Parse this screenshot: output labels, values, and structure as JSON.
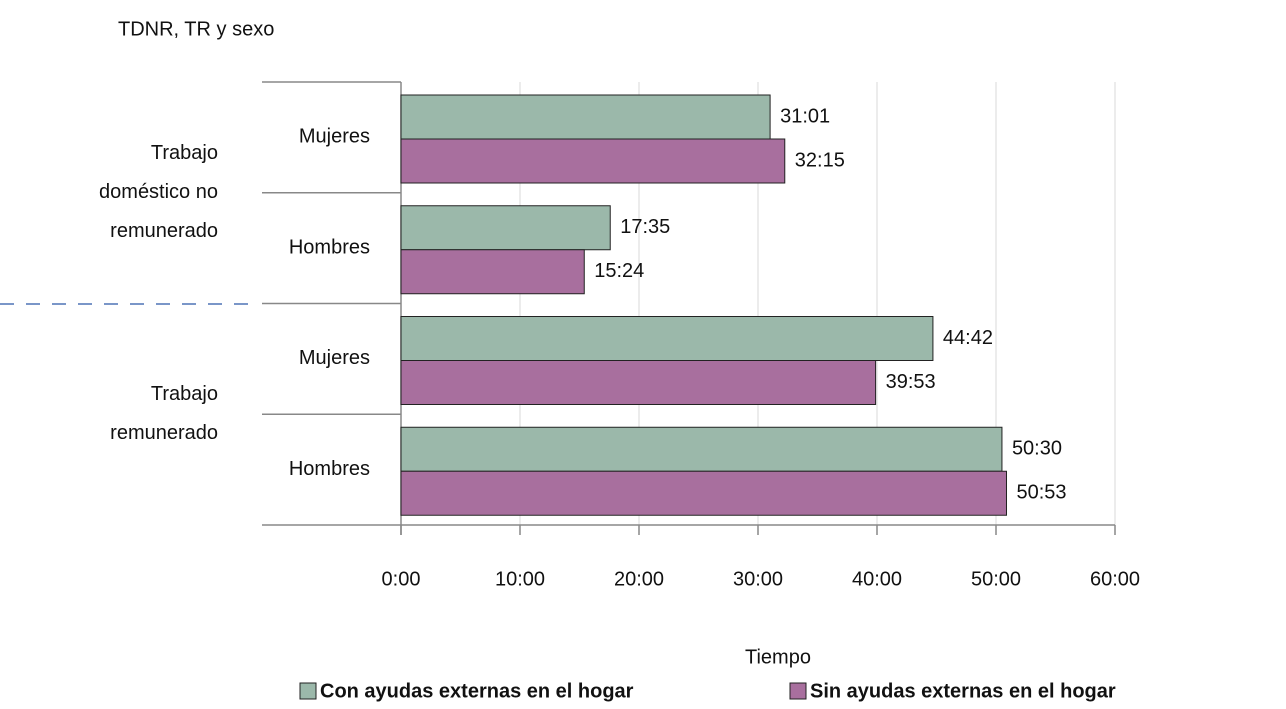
{
  "chart_data": {
    "type": "bar",
    "orientation": "horizontal",
    "title": "TDNR, TR y sexo",
    "x_label": "Tiempo",
    "groups": [
      [
        "Trabajo",
        "doméstico no",
        "remunerado"
      ],
      [
        "Trabajo",
        "remunerado"
      ]
    ],
    "categories": [
      "Mujeres",
      "Hombres",
      "Mujeres",
      "Hombres"
    ],
    "series": [
      {
        "name": "Con ayudas externas en el hogar",
        "color": "#9bb8aa",
        "values": [
          31.017,
          17.583,
          44.7,
          50.5
        ],
        "value_labels": [
          "31:01",
          "17:35",
          "44:42",
          "50:30"
        ]
      },
      {
        "name": "Sin ayudas externas en el hogar",
        "color": "#a86f9e",
        "values": [
          32.25,
          15.4,
          39.883,
          50.883
        ],
        "value_labels": [
          "32:15",
          "15:24",
          "39:53",
          "50:53"
        ]
      }
    ],
    "xlim": [
      0,
      60
    ],
    "xticks": [
      {
        "value": 0,
        "label": "0:00"
      },
      {
        "value": 10,
        "label": "10:00"
      },
      {
        "value": 20,
        "label": "20:00"
      },
      {
        "value": 30,
        "label": "30:00"
      },
      {
        "value": 40,
        "label": "40:00"
      },
      {
        "value": 50,
        "label": "50:00"
      },
      {
        "value": 60,
        "label": "60:00"
      }
    ],
    "grid": true
  }
}
